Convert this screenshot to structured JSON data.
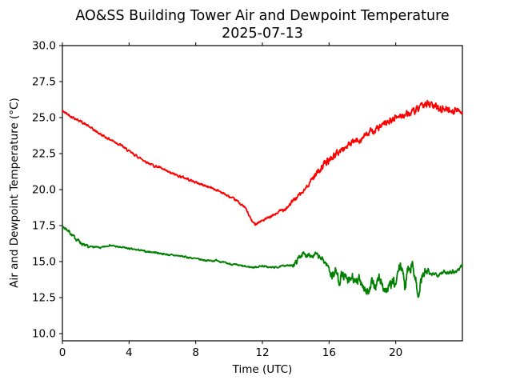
{
  "figure": {
    "background": "#ffffff",
    "text_color": "#000000",
    "axis_color": "#000000"
  },
  "chart_data": {
    "type": "line",
    "title": "AO&SS Building Tower Air and Dewpoint Temperature",
    "subtitle": "2025-07-13",
    "xlabel": "Time (UTC)",
    "ylabel": "Air and Dewpoint Temperature (°C)",
    "xlim": [
      0,
      24
    ],
    "ylim": [
      9.5,
      30.0
    ],
    "x_ticks": [
      0,
      4,
      8,
      12,
      16,
      20
    ],
    "x_tick_labels": [
      "0",
      "4",
      "8",
      "12",
      "16",
      "20"
    ],
    "y_ticks": [
      10.0,
      12.5,
      15.0,
      17.5,
      20.0,
      22.5,
      25.0,
      27.5,
      30.0
    ],
    "y_tick_labels": [
      "10.0",
      "12.5",
      "15.0",
      "17.5",
      "20.0",
      "22.5",
      "25.0",
      "27.5",
      "30.0"
    ],
    "grid": false,
    "legend": "none",
    "frame": "box",
    "ticks_on_top": true,
    "series": [
      {
        "name": "air-temperature",
        "color": "#ff0000",
        "line_width": 1.8,
        "noise_seed": 42,
        "noise": [
          {
            "from": 0,
            "to": 13,
            "amp": 0.07
          },
          {
            "from": 13,
            "to": 15,
            "amp": 0.12
          },
          {
            "from": 15,
            "to": 21,
            "amp": 0.2
          },
          {
            "from": 21,
            "to": 24,
            "amp": 0.22
          }
        ],
        "points": [
          [
            0,
            25.45
          ],
          [
            0.3,
            25.25
          ],
          [
            0.5,
            25.1
          ],
          [
            1,
            24.8
          ],
          [
            1.5,
            24.45
          ],
          [
            2,
            24.05
          ],
          [
            2.5,
            23.7
          ],
          [
            3,
            23.4
          ],
          [
            3.5,
            23.1
          ],
          [
            4,
            22.65
          ],
          [
            4.5,
            22.3
          ],
          [
            5,
            21.95
          ],
          [
            5.5,
            21.65
          ],
          [
            5.8,
            21.55
          ],
          [
            6.1,
            21.35
          ],
          [
            6.5,
            21.15
          ],
          [
            7,
            20.95
          ],
          [
            7.5,
            20.75
          ],
          [
            8,
            20.5
          ],
          [
            8.5,
            20.3
          ],
          [
            9,
            20.1
          ],
          [
            9.5,
            19.85
          ],
          [
            10,
            19.5
          ],
          [
            10.5,
            19.2
          ],
          [
            11,
            18.7
          ],
          [
            11.2,
            18.2
          ],
          [
            11.4,
            17.75
          ],
          [
            11.55,
            17.6
          ],
          [
            11.7,
            17.7
          ],
          [
            12,
            17.85
          ],
          [
            12.5,
            18.1
          ],
          [
            13,
            18.45
          ],
          [
            13.5,
            18.8
          ],
          [
            14,
            19.4
          ],
          [
            14.5,
            19.9
          ],
          [
            15,
            20.8
          ],
          [
            15.5,
            21.5
          ],
          [
            16,
            22.05
          ],
          [
            16.5,
            22.55
          ],
          [
            17,
            22.95
          ],
          [
            17.5,
            23.3
          ],
          [
            18,
            23.6
          ],
          [
            18.5,
            24.0
          ],
          [
            19,
            24.3
          ],
          [
            19.5,
            24.65
          ],
          [
            20,
            25.0
          ],
          [
            20.5,
            25.2
          ],
          [
            21,
            25.35
          ],
          [
            21.5,
            25.65
          ],
          [
            21.8,
            26.05
          ],
          [
            22,
            25.9
          ],
          [
            22.5,
            25.7
          ],
          [
            23,
            25.6
          ],
          [
            23.5,
            25.5
          ],
          [
            24,
            25.45
          ]
        ]
      },
      {
        "name": "dewpoint-temperature",
        "color": "#008000",
        "line_width": 1.8,
        "noise_seed": 7,
        "noise": [
          {
            "from": 0,
            "to": 1.6,
            "amp": 0.1
          },
          {
            "from": 1.6,
            "to": 13.8,
            "amp": 0.05
          },
          {
            "from": 13.8,
            "to": 16,
            "amp": 0.15
          },
          {
            "from": 16,
            "to": 22,
            "amp": 0.3
          },
          {
            "from": 22,
            "to": 24,
            "amp": 0.12
          }
        ],
        "points": [
          [
            0,
            17.4
          ],
          [
            0.2,
            17.3
          ],
          [
            0.4,
            17.1
          ],
          [
            0.6,
            16.8
          ],
          [
            0.8,
            16.6
          ],
          [
            1,
            16.45
          ],
          [
            1.2,
            16.2
          ],
          [
            1.4,
            16.05
          ],
          [
            1.6,
            16.0
          ],
          [
            1.8,
            16.05
          ],
          [
            2,
            16.0
          ],
          [
            2.3,
            15.95
          ],
          [
            2.6,
            16.05
          ],
          [
            2.8,
            16.15
          ],
          [
            3,
            16.1
          ],
          [
            3.4,
            16.0
          ],
          [
            3.8,
            15.95
          ],
          [
            4.2,
            15.85
          ],
          [
            4.6,
            15.8
          ],
          [
            5,
            15.7
          ],
          [
            5.5,
            15.65
          ],
          [
            6,
            15.55
          ],
          [
            6.5,
            15.45
          ],
          [
            7,
            15.4
          ],
          [
            7.5,
            15.3
          ],
          [
            8,
            15.2
          ],
          [
            8.5,
            15.1
          ],
          [
            9,
            15.05
          ],
          [
            9.3,
            15.1
          ],
          [
            9.6,
            14.95
          ],
          [
            10,
            14.85
          ],
          [
            10.5,
            14.75
          ],
          [
            11,
            14.65
          ],
          [
            11.5,
            14.6
          ],
          [
            12,
            14.7
          ],
          [
            12.4,
            14.6
          ],
          [
            12.8,
            14.6
          ],
          [
            13.1,
            14.65
          ],
          [
            13.4,
            14.75
          ],
          [
            13.7,
            14.7
          ],
          [
            14,
            14.9
          ],
          [
            14.2,
            15.3
          ],
          [
            14.4,
            15.55
          ],
          [
            14.6,
            15.4
          ],
          [
            14.8,
            15.6
          ],
          [
            15,
            15.35
          ],
          [
            15.2,
            15.5
          ],
          [
            15.4,
            15.3
          ],
          [
            15.6,
            15.15
          ],
          [
            15.8,
            14.9
          ],
          [
            16,
            14.55
          ],
          [
            16.2,
            14.0
          ],
          [
            16.4,
            14.35
          ],
          [
            16.6,
            13.7
          ],
          [
            16.8,
            14.1
          ],
          [
            17,
            13.8
          ],
          [
            17.2,
            13.5
          ],
          [
            17.4,
            13.95
          ],
          [
            17.6,
            13.4
          ],
          [
            17.8,
            13.75
          ],
          [
            18,
            13.5
          ],
          [
            18.2,
            13.0
          ],
          [
            18.4,
            12.85
          ],
          [
            18.6,
            13.55
          ],
          [
            18.8,
            13.3
          ],
          [
            19,
            13.85
          ],
          [
            19.2,
            13.4
          ],
          [
            19.4,
            12.95
          ],
          [
            19.6,
            13.2
          ],
          [
            19.8,
            13.55
          ],
          [
            20,
            13.35
          ],
          [
            20.2,
            14.55
          ],
          [
            20.4,
            14.65
          ],
          [
            20.55,
            13.0
          ],
          [
            20.7,
            14.55
          ],
          [
            21,
            14.7
          ],
          [
            21.2,
            13.9
          ],
          [
            21.35,
            12.35
          ],
          [
            21.5,
            13.6
          ],
          [
            21.7,
            14.2
          ],
          [
            21.9,
            14.3
          ],
          [
            22.1,
            14.0
          ],
          [
            22.3,
            14.2
          ],
          [
            22.5,
            14.1
          ],
          [
            22.8,
            14.3
          ],
          [
            23,
            14.2
          ],
          [
            23.3,
            14.35
          ],
          [
            23.6,
            14.3
          ],
          [
            23.8,
            14.5
          ],
          [
            24,
            14.8
          ]
        ]
      }
    ]
  }
}
